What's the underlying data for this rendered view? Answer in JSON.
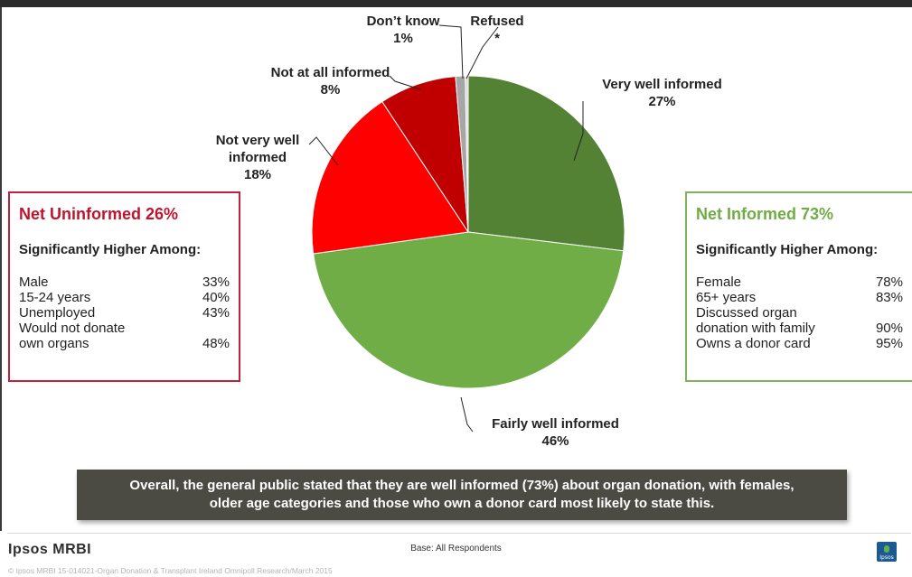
{
  "chart_data": {
    "type": "pie",
    "slices": [
      {
        "label_line1": "Very well informed",
        "label_line2": "",
        "value": 27,
        "value_label": "27%",
        "color": "#548235"
      },
      {
        "label_line1": "Fairly well informed",
        "label_line2": "",
        "value": 46,
        "value_label": "46%",
        "color": "#70ad47"
      },
      {
        "label_line1": "Not very well",
        "label_line2": "informed",
        "value": 18,
        "value_label": "18%",
        "color": "#ff0000"
      },
      {
        "label_line1": "Not at all informed",
        "label_line2": "",
        "value": 8,
        "value_label": "8%",
        "color": "#c00000"
      },
      {
        "label_line1": "Don’t know",
        "label_line2": "",
        "value": 1,
        "value_label": "1%",
        "color": "#a6a6a6"
      },
      {
        "label_line1": "Refused",
        "label_line2": "",
        "value": 0.3,
        "value_label": "*",
        "color": "#d9d9d9"
      }
    ]
  },
  "left_box": {
    "title": "Net Uninformed 26%",
    "subtitle": "Significantly Higher Among:",
    "rows": [
      {
        "label": "Male",
        "value": "33%"
      },
      {
        "label": "15-24 years",
        "value": "40%"
      },
      {
        "label": "Unemployed",
        "value": "43%"
      },
      {
        "label": "Would not donate",
        "value": ""
      },
      {
        "label": "own organs",
        "value": "48%"
      }
    ],
    "color": "#c00000"
  },
  "right_box": {
    "title": "Net Informed 73%",
    "subtitle": "Significantly Higher Among:",
    "rows": [
      {
        "label": "Female",
        "value": "78%"
      },
      {
        "label": "65+ years",
        "value": "83%"
      },
      {
        "label": "Discussed organ",
        "value": ""
      },
      {
        "label": "donation with family",
        "value": "90%"
      },
      {
        "label": "Owns a donor card",
        "value": "95%"
      }
    ],
    "color": "#70ad47"
  },
  "summary": {
    "line1": "Overall, the general public stated that they are well informed (73%) about organ donation, with females,",
    "line2": "older age categories and those who own a donor card most likely to state this."
  },
  "footer": {
    "logo": "Ipsos MRBI",
    "base": "Base:  All Respondents",
    "copyright": "© Ipsos MRBI   15-014021-Organ Donation & Transplant Ireland Omnipoll Research/March 2015",
    "badge_text": "Ipsos"
  }
}
